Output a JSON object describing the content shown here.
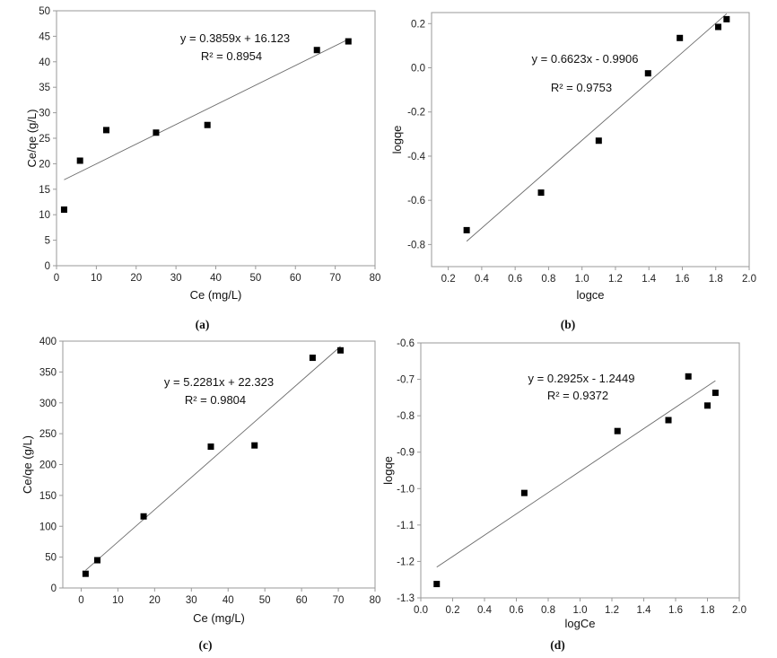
{
  "chart_data": [
    {
      "type": "scatter",
      "caption": "(a)",
      "xlabel": "Ce (mg/L)",
      "ylabel": "Ce/qe (g/L)",
      "xlim": [
        0,
        80
      ],
      "ylim": [
        0,
        50
      ],
      "xticks": [
        0,
        10,
        20,
        30,
        40,
        50,
        60,
        70,
        80
      ],
      "yticks": [
        0,
        5,
        10,
        15,
        20,
        25,
        30,
        35,
        40,
        45,
        50
      ],
      "tick_decimals": 0,
      "points": [
        [
          1.9,
          11
        ],
        [
          5.9,
          20.6
        ],
        [
          12.5,
          26.6
        ],
        [
          25,
          26.1
        ],
        [
          37.9,
          27.6
        ],
        [
          65.4,
          42.3
        ],
        [
          73.3,
          44
        ]
      ],
      "fit": {
        "slope": 0.3859,
        "intercept": 16.123,
        "x_range": [
          1.9,
          73.3
        ]
      },
      "equation": "y = 0.3859x + 16.123",
      "r2": "R² = 0.8954"
    },
    {
      "type": "scatter",
      "caption": "(b)",
      "xlabel": "logce",
      "ylabel": "logqe",
      "xlim": [
        0.1,
        2.0
      ],
      "ylim": [
        -0.9,
        0.25
      ],
      "xticks": [
        0.2,
        0.4,
        0.6,
        0.8,
        1.0,
        1.2,
        1.4,
        1.6,
        1.8,
        2.0
      ],
      "yticks": [
        -0.8,
        -0.6,
        -0.4,
        -0.2,
        0.0,
        0.2
      ],
      "tick_decimals": 1,
      "points": [
        [
          0.31,
          -0.735
        ],
        [
          0.755,
          -0.565
        ],
        [
          1.1,
          -0.33
        ],
        [
          1.395,
          -0.025
        ],
        [
          1.585,
          0.135
        ],
        [
          1.815,
          0.185
        ],
        [
          1.865,
          0.22
        ]
      ],
      "fit": {
        "slope": 0.6623,
        "intercept": -0.9906,
        "x_range": [
          0.31,
          1.865
        ]
      },
      "equation": "y = 0.6623x - 0.9906",
      "r2": "R² = 0.9753"
    },
    {
      "type": "scatter",
      "caption": "(c)",
      "xlabel": "Ce (mg/L)",
      "ylabel": "Ce/qe (g/L)",
      "xlim": [
        -5,
        80
      ],
      "ylim": [
        0,
        400
      ],
      "xticks": [
        0,
        10,
        20,
        30,
        40,
        50,
        60,
        70,
        80
      ],
      "yticks": [
        0,
        50,
        100,
        150,
        200,
        250,
        300,
        350,
        400
      ],
      "tick_decimals": 0,
      "points": [
        [
          1.2,
          23
        ],
        [
          4.4,
          45
        ],
        [
          17,
          116
        ],
        [
          35.3,
          229
        ],
        [
          47.2,
          231
        ],
        [
          63,
          373
        ],
        [
          70.6,
          385
        ]
      ],
      "fit": {
        "slope": 5.2281,
        "intercept": 22.323,
        "x_range": [
          1.2,
          70.6
        ]
      },
      "equation": "y = 5.2281x + 22.323",
      "r2": "R² = 0.9804"
    },
    {
      "type": "scatter",
      "caption": "(d)",
      "xlabel": "logCe",
      "ylabel": "logqe",
      "xlim": [
        0.0,
        2.0
      ],
      "ylim": [
        -1.3,
        -0.6
      ],
      "xticks": [
        0.0,
        0.2,
        0.4,
        0.6,
        0.8,
        1.0,
        1.2,
        1.4,
        1.6,
        1.8,
        2.0
      ],
      "yticks": [
        -1.3,
        -1.2,
        -1.1,
        -1.0,
        -0.9,
        -0.8,
        -0.7,
        -0.6
      ],
      "tick_decimals": 1,
      "points": [
        [
          0.1,
          -1.262
        ],
        [
          0.65,
          -1.012
        ],
        [
          1.235,
          -0.842
        ],
        [
          1.555,
          -0.812
        ],
        [
          1.68,
          -0.692
        ],
        [
          1.8,
          -0.772
        ],
        [
          1.85,
          -0.737
        ]
      ],
      "fit": {
        "slope": 0.2925,
        "intercept": -1.2449,
        "x_range": [
          0.1,
          1.85
        ]
      },
      "equation": "y = 0.2925x - 1.2449",
      "r2": "R² = 0.9372"
    }
  ]
}
